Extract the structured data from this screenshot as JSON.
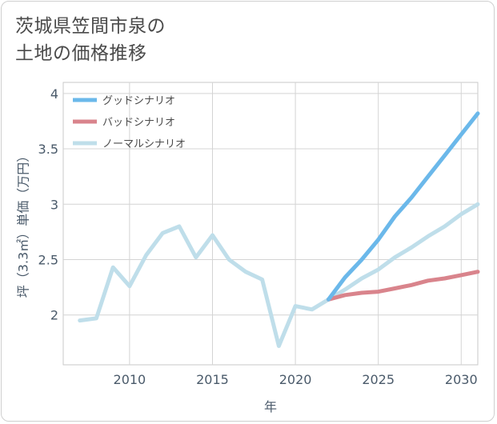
{
  "title_line1": "茨城県笠間市泉の",
  "title_line2": "土地の価格推移",
  "chart_data": {
    "type": "line",
    "title": "茨城県笠間市泉の土地の価格推移",
    "xlabel": "年",
    "ylabel": "坪（3.3㎡）単価（万円）",
    "xlim": [
      2006,
      2031
    ],
    "ylim": [
      1.55,
      4.1
    ],
    "x_ticks": [
      2010,
      2015,
      2020,
      2025,
      2030
    ],
    "y_ticks": [
      2,
      2.5,
      3,
      3.5,
      4
    ],
    "y_tick_labels": [
      "2",
      "2.5",
      "3",
      "3.5",
      "4"
    ],
    "grid": true,
    "legend_position": "top-left",
    "series": [
      {
        "name": "グッドシナリオ",
        "color": "#6bb8ea",
        "x": [
          2022,
          2023,
          2024,
          2025,
          2026,
          2027,
          2028,
          2029,
          2030,
          2031
        ],
        "y": [
          2.14,
          2.34,
          2.5,
          2.68,
          2.89,
          3.06,
          3.25,
          3.44,
          3.63,
          3.82
        ]
      },
      {
        "name": "バッドシナリオ",
        "color": "#d9848c",
        "x": [
          2022,
          2023,
          2024,
          2025,
          2026,
          2027,
          2028,
          2029,
          2030,
          2031
        ],
        "y": [
          2.14,
          2.18,
          2.2,
          2.21,
          2.24,
          2.27,
          2.31,
          2.33,
          2.36,
          2.39
        ]
      },
      {
        "name": "ノーマルシナリオ",
        "color": "#bfdeea",
        "x": [
          2007,
          2008,
          2009,
          2010,
          2011,
          2012,
          2013,
          2014,
          2015,
          2016,
          2017,
          2018,
          2019,
          2020,
          2021,
          2022,
          2023,
          2024,
          2025,
          2026,
          2027,
          2028,
          2029,
          2030,
          2031
        ],
        "y": [
          1.95,
          1.97,
          2.43,
          2.26,
          2.54,
          2.74,
          2.8,
          2.52,
          2.72,
          2.5,
          2.39,
          2.32,
          1.72,
          2.08,
          2.05,
          2.14,
          2.23,
          2.33,
          2.41,
          2.52,
          2.61,
          2.71,
          2.8,
          2.91,
          3.0
        ]
      }
    ]
  }
}
